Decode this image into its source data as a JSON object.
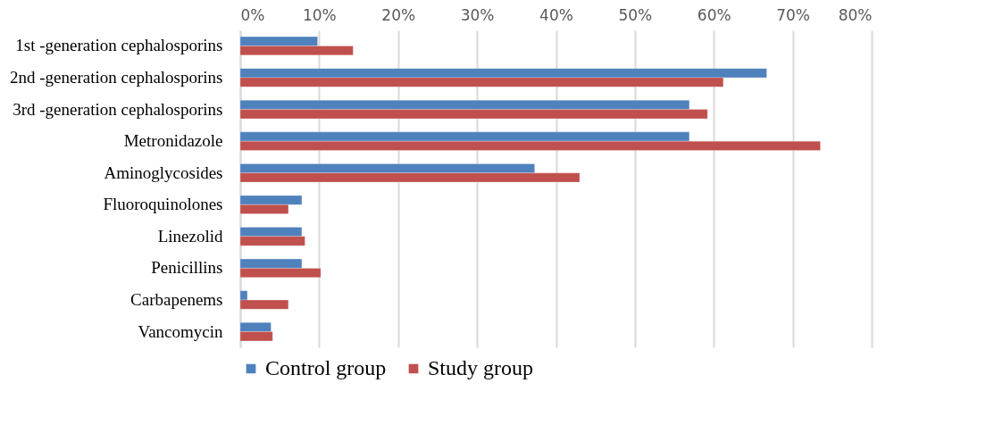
{
  "chart_data": {
    "type": "bar",
    "orientation": "horizontal",
    "categories": [
      "1st -generation cephalosporins",
      "2nd -generation cephalosporins",
      "3rd -generation cephalosporins",
      "Metronidazole",
      "Aminoglycosides",
      "Fluoroquinolones",
      "Linezolid",
      "Penicillins",
      "Carbapenems",
      "Vancomycin"
    ],
    "series": [
      {
        "name": "Control group",
        "color": "#4f81bd",
        "values": [
          9.8,
          66.7,
          56.9,
          56.9,
          37.3,
          7.8,
          7.8,
          7.8,
          0.9,
          3.9
        ]
      },
      {
        "name": "Study group",
        "color": "#c0504d",
        "values": [
          14.3,
          61.2,
          59.2,
          73.5,
          43.0,
          6.1,
          8.2,
          10.2,
          6.1,
          4.1
        ]
      }
    ],
    "xlim": [
      0,
      80
    ],
    "xticks": [
      {
        "value": 0,
        "label": "0%"
      },
      {
        "value": 10,
        "label": "10%"
      },
      {
        "value": 20,
        "label": "20%"
      },
      {
        "value": 30,
        "label": "30%"
      },
      {
        "value": 40,
        "label": "40%"
      },
      {
        "value": 50,
        "label": "50%"
      },
      {
        "value": 60,
        "label": "60%"
      },
      {
        "value": 70,
        "label": "70%"
      },
      {
        "value": 80,
        "label": "80%"
      }
    ],
    "grid": "x",
    "legend": "bottom"
  }
}
